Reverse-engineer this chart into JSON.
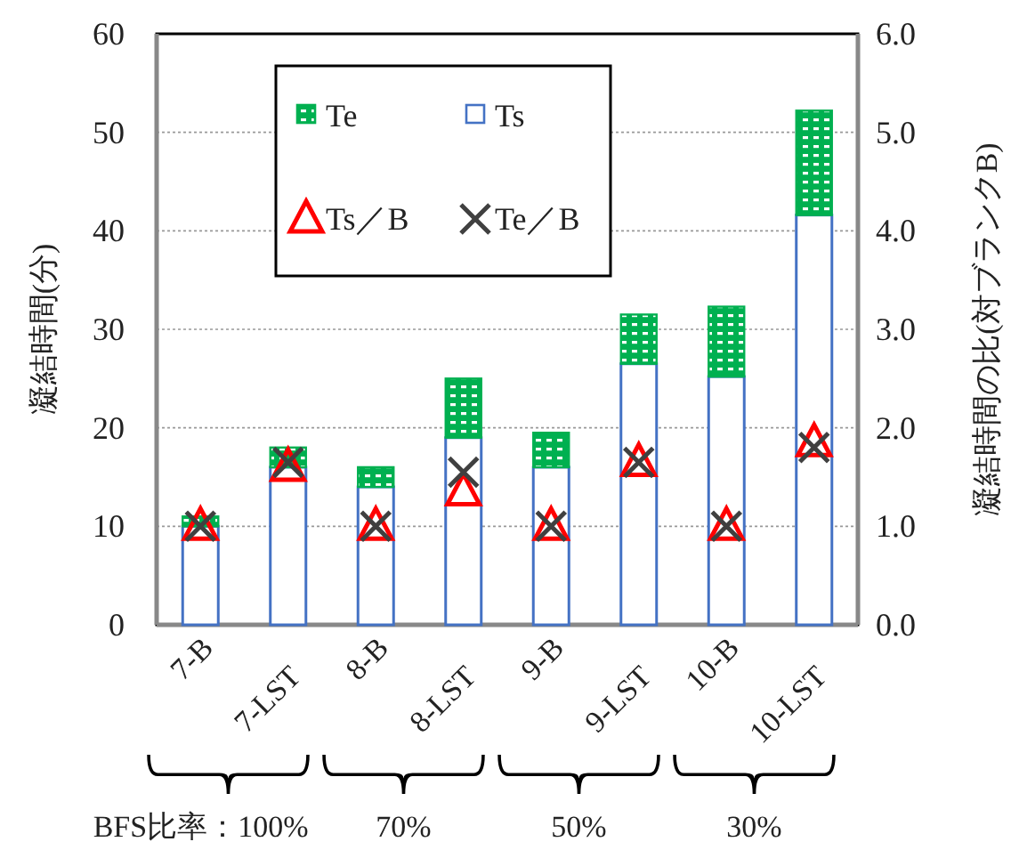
{
  "chart_data": {
    "type": "bar",
    "stacked": true,
    "ylabel": "凝結時間(分)",
    "y2label": "凝結時間の比(対ブランクB)",
    "categories": [
      "7-B",
      "7-LST",
      "8-B",
      "8-LST",
      "9-B",
      "9-LST",
      "10-B",
      "10-LST"
    ],
    "series": [
      {
        "name": "Ts",
        "color": "#4472c4",
        "values": [
          10,
          16,
          14,
          19,
          16,
          26.5,
          25.2,
          41.6
        ]
      },
      {
        "name": "Te",
        "color": "#00b050",
        "values": [
          1,
          2,
          2,
          6,
          3.5,
          5,
          7.1,
          10.6
        ]
      },
      {
        "name": "Ts／B",
        "type": "scatter",
        "axis": "y2",
        "marker": "triangle",
        "color": "#ff0000",
        "values": [
          1,
          1.6,
          1,
          1.35,
          1,
          1.65,
          1,
          1.85
        ]
      },
      {
        "name": "Te／B",
        "type": "scatter",
        "axis": "y2",
        "marker": "cross",
        "color": "#404040",
        "values": [
          1,
          1.65,
          1,
          1.55,
          1,
          1.65,
          1,
          1.8
        ]
      }
    ],
    "ylim": [
      0,
      60
    ],
    "yticks": [
      0,
      10,
      20,
      30,
      40,
      50,
      60
    ],
    "y2lim": [
      0,
      6
    ],
    "y2ticks": [
      {
        "value": 0,
        "label": "0.0"
      },
      {
        "value": 1,
        "label": "1.0"
      },
      {
        "value": 2,
        "label": "2.0"
      },
      {
        "value": 3,
        "label": "3.0"
      },
      {
        "value": 4,
        "label": "4.0"
      },
      {
        "value": 5,
        "label": "5.0"
      },
      {
        "value": 6,
        "label": "6.0"
      }
    ],
    "grid": "y",
    "legend": "top",
    "annotations": [
      "BFS比率：100%",
      "70%",
      "50%",
      "30%"
    ]
  }
}
